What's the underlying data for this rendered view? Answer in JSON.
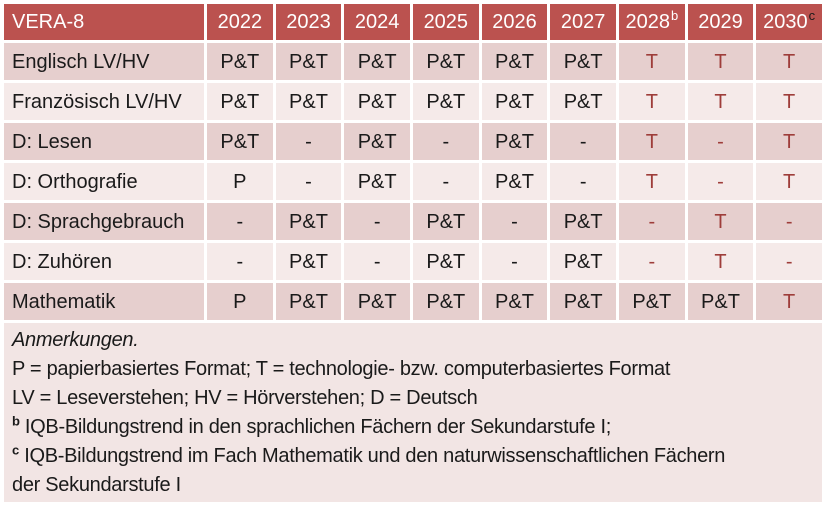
{
  "colors": {
    "header_bg": "#bb524f",
    "header_text": "#ffffff",
    "band_dark": "#e6cfce",
    "band_light": "#f5eae9",
    "notes_bg": "#f2e5e4",
    "body_text": "#1a1a1a",
    "accent_red": "#9e3d3a"
  },
  "table": {
    "title": "VERA-8",
    "columns": [
      {
        "label": "2022"
      },
      {
        "label": "2023"
      },
      {
        "label": "2024"
      },
      {
        "label": "2025"
      },
      {
        "label": "2026"
      },
      {
        "label": "2027"
      },
      {
        "label": "2028",
        "sup": "b",
        "sup_color": "#ffffff"
      },
      {
        "label": "2029"
      },
      {
        "label": "2030",
        "sup": "c",
        "sup_color": "#1a1a1a"
      }
    ],
    "rows": [
      {
        "label": "Englisch LV/HV",
        "band": "dark",
        "cells": [
          {
            "v": "P&T"
          },
          {
            "v": "P&T"
          },
          {
            "v": "P&T"
          },
          {
            "v": "P&T"
          },
          {
            "v": "P&T"
          },
          {
            "v": "P&T"
          },
          {
            "v": "T",
            "red": true
          },
          {
            "v": "T",
            "red": true
          },
          {
            "v": "T",
            "red": true
          }
        ]
      },
      {
        "label": "Französisch LV/HV",
        "band": "light",
        "cells": [
          {
            "v": "P&T"
          },
          {
            "v": "P&T"
          },
          {
            "v": "P&T"
          },
          {
            "v": "P&T"
          },
          {
            "v": "P&T"
          },
          {
            "v": "P&T"
          },
          {
            "v": "T",
            "red": true
          },
          {
            "v": "T",
            "red": true
          },
          {
            "v": "T",
            "red": true
          }
        ]
      },
      {
        "label": "D: Lesen",
        "band": "dark",
        "cells": [
          {
            "v": "P&T"
          },
          {
            "v": "-"
          },
          {
            "v": "P&T"
          },
          {
            "v": "-"
          },
          {
            "v": "P&T"
          },
          {
            "v": "-"
          },
          {
            "v": "T",
            "red": true
          },
          {
            "v": "-",
            "red": true
          },
          {
            "v": "T",
            "red": true
          }
        ]
      },
      {
        "label": "D: Orthografie",
        "band": "light",
        "cells": [
          {
            "v": "P"
          },
          {
            "v": "-"
          },
          {
            "v": "P&T"
          },
          {
            "v": "-"
          },
          {
            "v": "P&T"
          },
          {
            "v": "-"
          },
          {
            "v": "T",
            "red": true
          },
          {
            "v": "-",
            "red": true
          },
          {
            "v": "T",
            "red": true
          }
        ]
      },
      {
        "label": "D: Sprachgebrauch",
        "band": "dark",
        "cells": [
          {
            "v": "-"
          },
          {
            "v": "P&T"
          },
          {
            "v": "-"
          },
          {
            "v": "P&T"
          },
          {
            "v": "-"
          },
          {
            "v": "P&T"
          },
          {
            "v": "-",
            "red": true
          },
          {
            "v": "T",
            "red": true
          },
          {
            "v": "-",
            "red": true
          }
        ]
      },
      {
        "label": "D: Zuhören",
        "band": "light",
        "cells": [
          {
            "v": "-"
          },
          {
            "v": "P&T"
          },
          {
            "v": "-"
          },
          {
            "v": "P&T"
          },
          {
            "v": "-"
          },
          {
            "v": "P&T"
          },
          {
            "v": "-",
            "red": true
          },
          {
            "v": "T",
            "red": true
          },
          {
            "v": "-",
            "red": true
          }
        ]
      },
      {
        "label": "Mathematik",
        "band": "dark",
        "cells": [
          {
            "v": "P"
          },
          {
            "v": "P&T"
          },
          {
            "v": "P&T"
          },
          {
            "v": "P&T"
          },
          {
            "v": "P&T"
          },
          {
            "v": "P&T"
          },
          {
            "v": "P&T"
          },
          {
            "v": "P&T"
          },
          {
            "v": "T",
            "red": true
          }
        ]
      }
    ]
  },
  "notes": {
    "title": "Anmerkungen.",
    "line_formats": "P = papierbasiertes Format; T = technologie- bzw. computerbasiertes Format",
    "line_abbrev": "LV = Leseverstehen; HV = Hörverstehen; D = Deutsch",
    "footnote_b": {
      "sup": "b",
      "text": "IQB-Bildungstrend in den sprachlichen Fächern der Sekundarstufe I;"
    },
    "footnote_c": {
      "sup": "c",
      "text": "IQB-Bildungstrend im Fach Mathematik und den naturwissenschaftlichen Fächern der Sekundarstufe I"
    }
  }
}
